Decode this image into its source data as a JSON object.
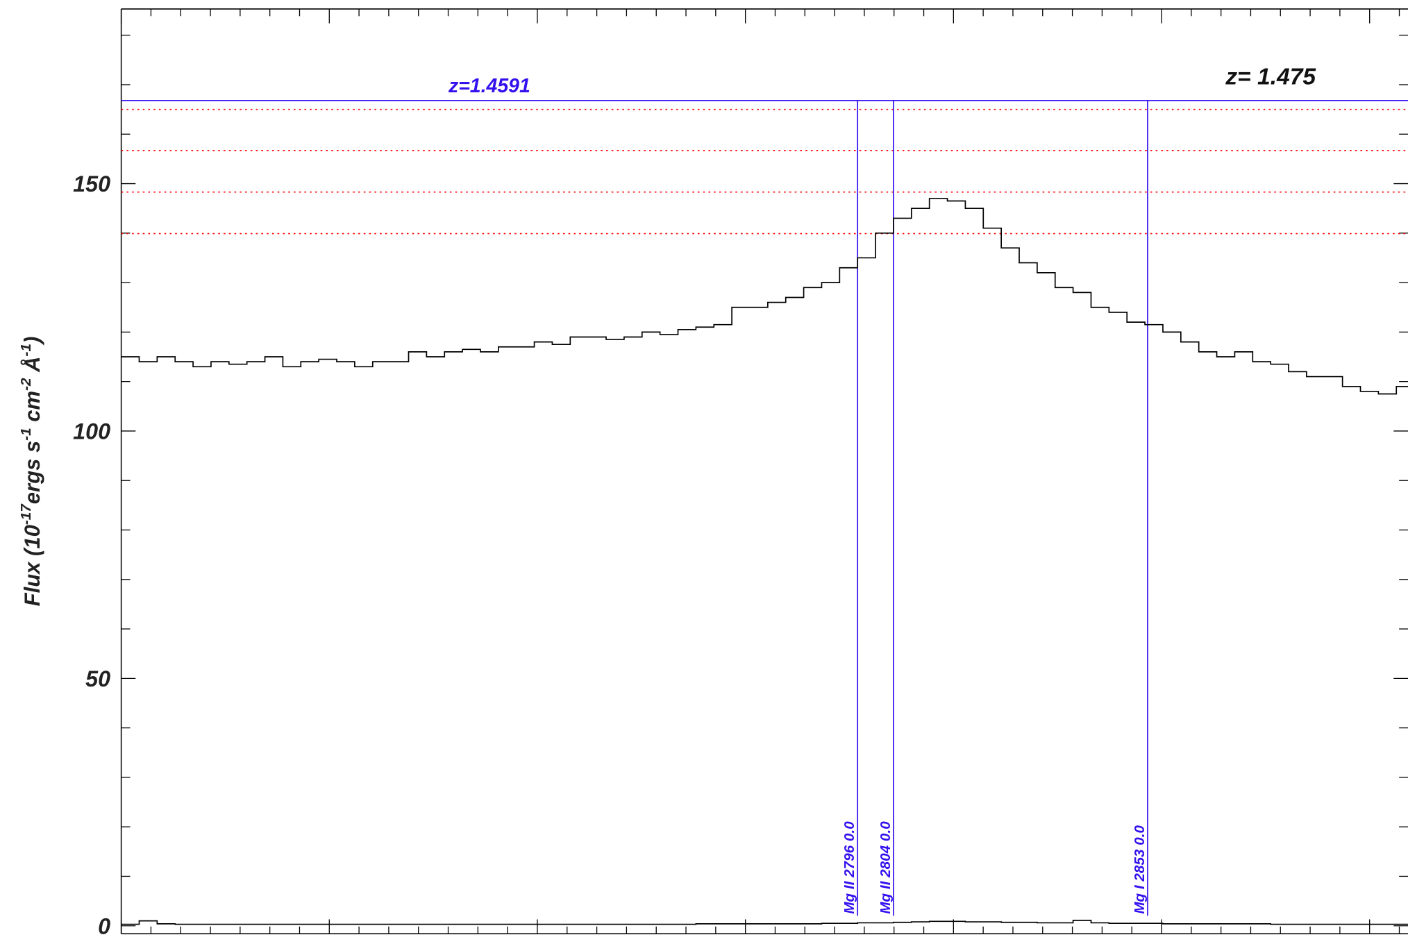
{
  "chart_data": {
    "type": "line",
    "step": true,
    "ylabel": [
      "Flux (10",
      "-17",
      "ergs s",
      "-1",
      " cm",
      "-2",
      " Å",
      "-1",
      ")"
    ],
    "ylim": [
      -1.6,
      185.3
    ],
    "yticks": [
      0,
      50,
      100,
      150
    ],
    "yminor_ticks": [
      10,
      20,
      30,
      40,
      60,
      70,
      80,
      90,
      110,
      120,
      130,
      140,
      160,
      170,
      180
    ],
    "series": [
      {
        "color": "#000000",
        "values": [
          115,
          114,
          115,
          114,
          113,
          114,
          113.5,
          114,
          115,
          113,
          114,
          114.5,
          114,
          113,
          114,
          114,
          116,
          115,
          116,
          116.5,
          116,
          117,
          117,
          118,
          117.5,
          119,
          119,
          118.5,
          119,
          120,
          119.5,
          120.5,
          121,
          121.5,
          125,
          125,
          126,
          127,
          129,
          130,
          133,
          135,
          140,
          143,
          145,
          147,
          146.5,
          145,
          141,
          137,
          134,
          132,
          129,
          128,
          125,
          124,
          122,
          121.5,
          120,
          118,
          116,
          115,
          116,
          114,
          113.5,
          112,
          111,
          111,
          109,
          108,
          107.5,
          109
        ]
      },
      {
        "color": "#000000",
        "values": [
          0.3,
          1.0,
          0.4,
          0.3,
          0.3,
          0.3,
          0.3,
          0.3,
          0.3,
          0.3,
          0.3,
          0.3,
          0.3,
          0.3,
          0.3,
          0.3,
          0.3,
          0.3,
          0.3,
          0.3,
          0.3,
          0.3,
          0.3,
          0.3,
          0.3,
          0.3,
          0.3,
          0.3,
          0.3,
          0.3,
          0.3,
          0.3,
          0.4,
          0.4,
          0.4,
          0.4,
          0.4,
          0.4,
          0.4,
          0.5,
          0.5,
          0.6,
          0.6,
          0.7,
          0.8,
          0.9,
          0.9,
          0.8,
          0.8,
          0.7,
          0.7,
          0.6,
          0.6,
          1.1,
          0.6,
          0.5,
          0.5,
          0.5,
          0.4,
          0.4,
          0.4,
          0.4,
          0.4,
          0.4,
          0.3,
          0.3,
          0.3,
          0.3,
          0.3,
          0.3,
          0.3,
          0.3
        ]
      }
    ],
    "reference_levels": {
      "color": "#ff0000",
      "values": [
        165,
        156.7,
        148.3,
        139.9
      ]
    },
    "redshift_line": {
      "color": "#3311ee",
      "value": 166.8,
      "label": "z=1.4591",
      "lines": [
        "Mg II 2796 0.0",
        "Mg II 2804 0.0",
        "Mg I 2853 0.0"
      ]
    },
    "fit_label": "z= 1.475"
  }
}
